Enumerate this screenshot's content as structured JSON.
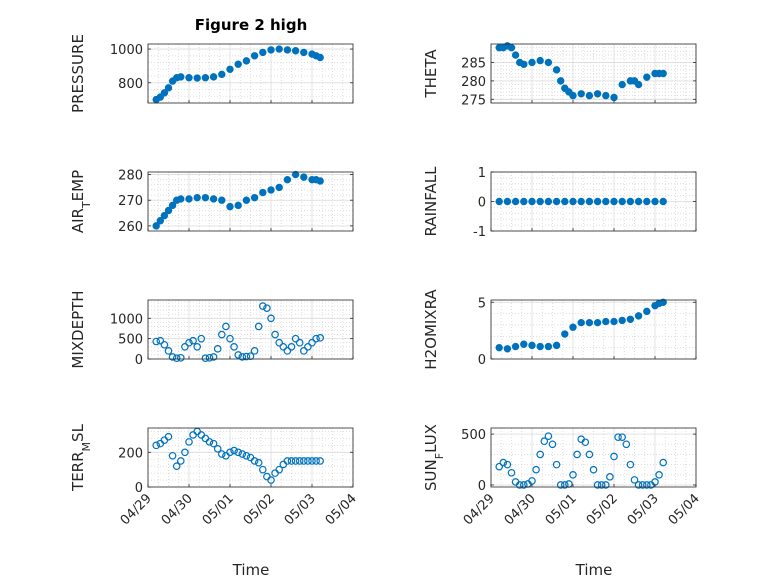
{
  "figure": {
    "title": "Figure 2 high",
    "xlabel": "Time"
  },
  "chart_data": [
    {
      "type": "scatter",
      "ylabel": "PRESSURE",
      "ylim": [
        680,
        1030
      ],
      "yticks": [
        "800",
        "1000"
      ],
      "ytick_values": [
        800,
        1000
      ],
      "xlim": [
        0,
        5
      ],
      "xticks": [
        "04/29",
        "04/30",
        "05/01",
        "05/02",
        "05/03",
        "05/04"
      ],
      "grid": true,
      "color": "#0072BD",
      "filled": true,
      "series": [
        {
          "x": [
            0.2,
            0.3,
            0.4,
            0.5,
            0.6,
            0.7,
            0.8,
            1.0,
            1.2,
            1.4,
            1.6,
            1.8,
            2.0,
            2.2,
            2.4,
            2.6,
            2.8,
            3.0,
            3.2,
            3.4,
            3.6,
            3.8,
            4.0,
            4.1,
            4.2
          ],
          "y": [
            700,
            715,
            740,
            770,
            810,
            830,
            835,
            830,
            828,
            830,
            835,
            850,
            880,
            910,
            930,
            960,
            980,
            995,
            1000,
            995,
            990,
            980,
            970,
            960,
            950
          ]
        }
      ]
    },
    {
      "type": "scatter",
      "ylabel": "THETA",
      "ylim": [
        274,
        290
      ],
      "yticks": [
        "275",
        "280",
        "285"
      ],
      "ytick_values": [
        275,
        280,
        285
      ],
      "xlim": [
        0,
        5
      ],
      "xticks": [
        "04/29",
        "04/30",
        "05/01",
        "05/02",
        "05/03",
        "05/04"
      ],
      "grid": true,
      "color": "#0072BD",
      "filled": true,
      "series": [
        {
          "x": [
            0.2,
            0.3,
            0.4,
            0.5,
            0.6,
            0.7,
            0.8,
            1.0,
            1.2,
            1.4,
            1.6,
            1.7,
            1.8,
            1.9,
            2.0,
            2.2,
            2.4,
            2.6,
            2.8,
            3.0,
            3.2,
            3.4,
            3.5,
            3.6,
            3.8,
            4.0,
            4.1,
            4.2
          ],
          "y": [
            289,
            289,
            289.5,
            289,
            287,
            285,
            284.5,
            285,
            285.5,
            285,
            283,
            280,
            278,
            277,
            276,
            276.5,
            276,
            276.5,
            276,
            275.5,
            279,
            280,
            280,
            279,
            281,
            282,
            282,
            282
          ]
        }
      ]
    },
    {
      "type": "scatter",
      "ylabel": "AIR_TEMP",
      "ylim": [
        258,
        281
      ],
      "yticks": [
        "260",
        "270",
        "280"
      ],
      "ytick_values": [
        260,
        270,
        280
      ],
      "xlim": [
        0,
        5
      ],
      "xticks": [
        "04/29",
        "04/30",
        "05/01",
        "05/02",
        "05/03",
        "05/04"
      ],
      "grid": true,
      "color": "#0072BD",
      "filled": true,
      "series": [
        {
          "x": [
            0.2,
            0.3,
            0.4,
            0.5,
            0.6,
            0.7,
            0.8,
            1.0,
            1.2,
            1.4,
            1.6,
            1.8,
            2.0,
            2.2,
            2.4,
            2.6,
            2.8,
            3.0,
            3.2,
            3.4,
            3.6,
            3.8,
            4.0,
            4.1,
            4.2
          ],
          "y": [
            260,
            262,
            264,
            266,
            268,
            270,
            270.5,
            270.5,
            271,
            271,
            270.5,
            270,
            267.5,
            268,
            270,
            271,
            273,
            274,
            275,
            278,
            280,
            279,
            278,
            278,
            277.5
          ]
        }
      ]
    },
    {
      "type": "scatter",
      "ylabel": "RAINFALL",
      "ylim": [
        -1,
        1
      ],
      "yticks": [
        "-1",
        "0",
        "1"
      ],
      "ytick_values": [
        -1,
        0,
        1
      ],
      "xlim": [
        0,
        5
      ],
      "xticks": [
        "04/29",
        "04/30",
        "05/01",
        "05/02",
        "05/03",
        "05/04"
      ],
      "grid": true,
      "color": "#0072BD",
      "filled": true,
      "series": [
        {
          "x": [
            0.2,
            0.4,
            0.6,
            0.8,
            1.0,
            1.2,
            1.4,
            1.6,
            1.8,
            2.0,
            2.2,
            2.4,
            2.6,
            2.8,
            3.0,
            3.2,
            3.4,
            3.6,
            3.8,
            4.0,
            4.2
          ],
          "y": [
            0,
            0,
            0,
            0,
            0,
            0,
            0,
            0,
            0,
            0,
            0,
            0,
            0,
            0,
            0,
            0,
            0,
            0,
            0,
            0,
            0
          ]
        }
      ]
    },
    {
      "type": "scatter",
      "ylabel": "MIXDEPTH",
      "ylim": [
        0,
        1450
      ],
      "yticks": [
        "0",
        "500",
        "1000"
      ],
      "ytick_values": [
        0,
        500,
        1000
      ],
      "xlim": [
        0,
        5
      ],
      "xticks": [
        "04/29",
        "04/30",
        "05/01",
        "05/02",
        "05/03",
        "05/04"
      ],
      "grid": true,
      "color": "#0072BD",
      "filled": false,
      "series": [
        {
          "x": [
            0.2,
            0.3,
            0.4,
            0.5,
            0.6,
            0.7,
            0.8,
            0.9,
            1.0,
            1.1,
            1.2,
            1.3,
            1.4,
            1.5,
            1.6,
            1.7,
            1.8,
            1.9,
            2.0,
            2.1,
            2.2,
            2.3,
            2.4,
            2.5,
            2.6,
            2.7,
            2.8,
            2.9,
            3.0,
            3.1,
            3.2,
            3.3,
            3.4,
            3.5,
            3.6,
            3.7,
            3.8,
            3.9,
            4.0,
            4.1,
            4.2
          ],
          "y": [
            430,
            450,
            350,
            200,
            50,
            20,
            30,
            300,
            400,
            450,
            300,
            500,
            20,
            30,
            50,
            250,
            600,
            800,
            500,
            300,
            100,
            50,
            60,
            70,
            200,
            800,
            1300,
            1250,
            1000,
            600,
            400,
            300,
            200,
            300,
            500,
            400,
            200,
            300,
            400,
            500,
            520
          ]
        }
      ]
    },
    {
      "type": "scatter",
      "ylabel": "H2OMIXRA",
      "ylim": [
        0,
        5.2
      ],
      "yticks": [
        "0",
        "5"
      ],
      "ytick_values": [
        0,
        5
      ],
      "xlim": [
        0,
        5
      ],
      "xticks": [
        "04/29",
        "04/30",
        "05/01",
        "05/02",
        "05/03",
        "05/04"
      ],
      "grid": true,
      "color": "#0072BD",
      "filled": true,
      "series": [
        {
          "x": [
            0.2,
            0.4,
            0.6,
            0.8,
            1.0,
            1.2,
            1.4,
            1.6,
            1.8,
            2.0,
            2.2,
            2.4,
            2.6,
            2.8,
            3.0,
            3.2,
            3.4,
            3.6,
            3.8,
            4.0,
            4.1,
            4.2
          ],
          "y": [
            1.0,
            0.9,
            1.1,
            1.3,
            1.2,
            1.1,
            1.1,
            1.2,
            2.2,
            2.8,
            3.2,
            3.2,
            3.2,
            3.3,
            3.3,
            3.4,
            3.5,
            3.8,
            4.2,
            4.7,
            4.9,
            5.0
          ]
        }
      ]
    },
    {
      "type": "scatter",
      "ylabel": "TERR_MSL",
      "ylim": [
        0,
        340
      ],
      "yticks": [
        "0",
        "200"
      ],
      "ytick_values": [
        0,
        200
      ],
      "xlim": [
        0,
        5
      ],
      "xticks": [
        "04/29",
        "04/30",
        "05/01",
        "05/02",
        "05/03",
        "05/04"
      ],
      "grid": true,
      "color": "#0072BD",
      "filled": false,
      "series": [
        {
          "x": [
            0.2,
            0.3,
            0.4,
            0.5,
            0.6,
            0.7,
            0.8,
            0.9,
            1.0,
            1.1,
            1.2,
            1.3,
            1.4,
            1.5,
            1.6,
            1.7,
            1.8,
            1.9,
            2.0,
            2.1,
            2.2,
            2.3,
            2.4,
            2.5,
            2.6,
            2.7,
            2.8,
            2.9,
            3.0,
            3.1,
            3.2,
            3.3,
            3.4,
            3.5,
            3.6,
            3.7,
            3.8,
            3.9,
            4.0,
            4.1,
            4.2
          ],
          "y": [
            240,
            250,
            270,
            290,
            180,
            120,
            150,
            200,
            260,
            300,
            320,
            300,
            280,
            260,
            250,
            220,
            190,
            180,
            200,
            210,
            200,
            190,
            180,
            170,
            150,
            140,
            100,
            60,
            40,
            80,
            100,
            130,
            150,
            150,
            150,
            150,
            150,
            150,
            150,
            150,
            150
          ]
        }
      ]
    },
    {
      "type": "scatter",
      "ylabel": "SUN_FLUX",
      "ylim": [
        -20,
        560
      ],
      "yticks": [
        "0",
        "500"
      ],
      "ytick_values": [
        0,
        500
      ],
      "xlim": [
        0,
        5
      ],
      "xticks": [
        "04/29",
        "04/30",
        "05/01",
        "05/02",
        "05/03",
        "05/04"
      ],
      "grid": true,
      "color": "#0072BD",
      "filled": false,
      "series": [
        {
          "x": [
            0.2,
            0.3,
            0.4,
            0.5,
            0.6,
            0.7,
            0.8,
            0.9,
            1.0,
            1.1,
            1.2,
            1.3,
            1.4,
            1.5,
            1.6,
            1.7,
            1.8,
            1.9,
            2.0,
            2.1,
            2.2,
            2.3,
            2.4,
            2.5,
            2.6,
            2.7,
            2.8,
            2.9,
            3.0,
            3.1,
            3.2,
            3.3,
            3.4,
            3.5,
            3.6,
            3.7,
            3.8,
            3.9,
            4.0,
            4.1,
            4.2
          ],
          "y": [
            180,
            220,
            200,
            120,
            30,
            0,
            0,
            10,
            40,
            150,
            300,
            430,
            480,
            400,
            200,
            0,
            0,
            10,
            100,
            300,
            450,
            420,
            300,
            150,
            0,
            0,
            0,
            80,
            280,
            470,
            470,
            400,
            200,
            50,
            0,
            0,
            0,
            0,
            30,
            100,
            220
          ]
        }
      ]
    }
  ]
}
